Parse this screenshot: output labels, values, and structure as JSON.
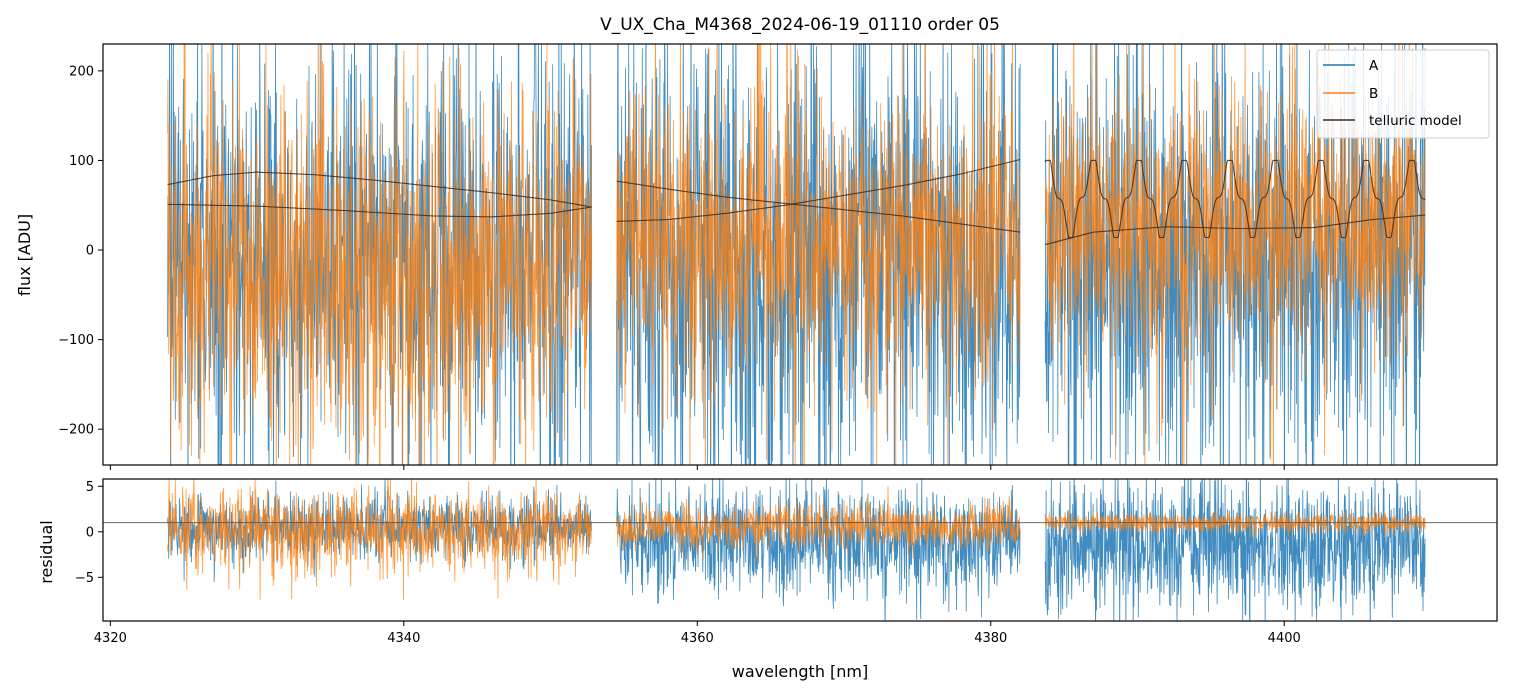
{
  "chart_data": [
    {
      "type": "line",
      "panel": "flux",
      "title": "V_UX_Cha_M4368_2024-06-19_01110  order 05",
      "xlabel": "",
      "ylabel": "flux [ADU]",
      "xlim": [
        4319.5,
        4414.5
      ],
      "ylim": [
        -240,
        230
      ],
      "xticks": [
        4320,
        4340,
        4360,
        4380,
        4400
      ],
      "xticklabels_visible": false,
      "yticks": [
        -200,
        -100,
        0,
        100,
        200
      ],
      "yticklabels": [
        "−200",
        "−100",
        "0",
        "100",
        "200"
      ],
      "segments_nm": [
        [
          4323.9,
          4352.8
        ],
        [
          4354.5,
          4382.0
        ],
        [
          4383.7,
          4409.6
        ]
      ],
      "series": [
        {
          "name": "A",
          "color": "#1f77b4",
          "style": "noisy spectrum, std ~110 ADU, spikes beyond axis limits"
        },
        {
          "name": "B",
          "color": "#ff7f0e",
          "style": "noisy spectrum, std ~85 ADU, drawn over A"
        },
        {
          "name": "telluric model",
          "color": "#3b2a1e",
          "style": "smooth model curves per segment"
        }
      ],
      "telluric_model": {
        "upper_seg1": {
          "x": [
            4323.9,
            4327,
            4330,
            4334,
            4338,
            4342,
            4346,
            4350,
            4352.8
          ],
          "y": [
            73,
            83,
            87,
            84,
            78,
            71,
            64,
            56,
            48
          ]
        },
        "lower_seg1": {
          "x": [
            4323.9,
            4330,
            4336,
            4342,
            4346,
            4350,
            4352.8
          ],
          "y": [
            51,
            49,
            44,
            38,
            37,
            41,
            48
          ]
        },
        "falling_seg2": {
          "x": [
            4354.5,
            4358,
            4362,
            4366,
            4370,
            4374,
            4378,
            4382.0
          ],
          "y": [
            77,
            68,
            59,
            52,
            45,
            38,
            29,
            20
          ]
        },
        "rising_seg2": {
          "x": [
            4354.5,
            4358,
            4362,
            4366,
            4370,
            4374,
            4378,
            4382.0
          ],
          "y": [
            32,
            34,
            41,
            50,
            61,
            72,
            85,
            101
          ]
        },
        "oscillating_seg3": {
          "x_start": 4383.7,
          "x_end": 4409.6,
          "mean": 58,
          "amplitude": 38,
          "period_nm": 3.1
        },
        "lower_seg3": {
          "x": [
            4383.7,
            4387,
            4392,
            4397,
            4402,
            4406,
            4409.6
          ],
          "y": [
            6,
            20,
            26,
            24,
            25,
            34,
            39
          ]
        }
      },
      "legend": {
        "position": "top-right",
        "entries": [
          "A",
          "B",
          "telluric model"
        ]
      }
    },
    {
      "type": "line",
      "panel": "residual",
      "xlabel": "wavelength [nm]",
      "ylabel": "residual",
      "xlim": [
        4319.5,
        4414.5
      ],
      "ylim": [
        -9.8,
        5.8
      ],
      "xticks": [
        4320,
        4340,
        4360,
        4380,
        4400
      ],
      "xticklabels": [
        "4320",
        "4340",
        "4360",
        "4380",
        "4400"
      ],
      "yticks": [
        -5,
        0,
        5
      ],
      "yticklabels": [
        "−5",
        "0",
        "5"
      ],
      "reference_line_y": 1.0,
      "series": [
        {
          "name": "A",
          "color": "#1f77b4",
          "style": "noisy residual, std ~2 (segment 1) to ~3.5 (segments 2-3)"
        },
        {
          "name": "B",
          "color": "#ff7f0e",
          "style": "noisy residual, std ~2 (segment 1) to ~0.6 (segment 3)"
        }
      ]
    }
  ]
}
